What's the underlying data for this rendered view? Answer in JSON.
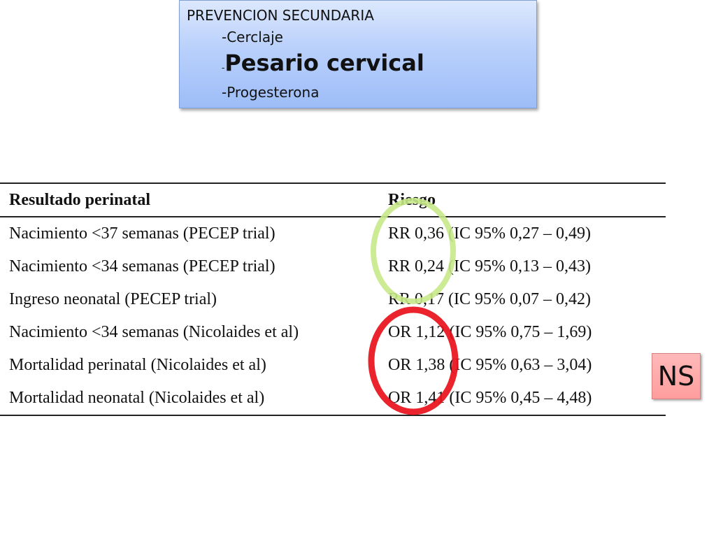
{
  "box": {
    "title": "PREVENCION SECUNDARIA",
    "items": [
      "-Cerclaje",
      "-",
      "Pesario cervical",
      "-Progesterona"
    ]
  },
  "table": {
    "headers": [
      "Resultado perinatal",
      "Riesgo"
    ],
    "rows": [
      {
        "outcome": "Nacimiento <37 semanas (PECEP trial)",
        "risk": "RR 0,36 (IC 95% 0,27 – 0,49)"
      },
      {
        "outcome": "Nacimiento <34 semanas (PECEP trial)",
        "risk": "RR 0,24 (IC 95% 0,13 – 0,43)"
      },
      {
        "outcome": "Ingreso neonatal (PECEP trial)",
        "risk": "RR 0,17 (IC 95% 0,07 – 0,42)"
      },
      {
        "outcome": "Nacimiento <34 semanas (Nicolaides et al)",
        "risk": "OR 1,12 (IC 95% 0,75 – 1,69)"
      },
      {
        "outcome": "Mortalidad perinatal (Nicolaides et al)",
        "risk": "OR 1,38 (IC 95% 0,63 – 3,04)"
      },
      {
        "outcome": "Mortalidad neonatal (Nicolaides et al)",
        "risk": "OR 1,41 (IC 95% 0,45 – 4,48)"
      }
    ]
  },
  "annotations": {
    "green_circle_color": "#c8e88a",
    "red_circle_color": "#e8101a"
  },
  "badge": {
    "label": "NS"
  }
}
